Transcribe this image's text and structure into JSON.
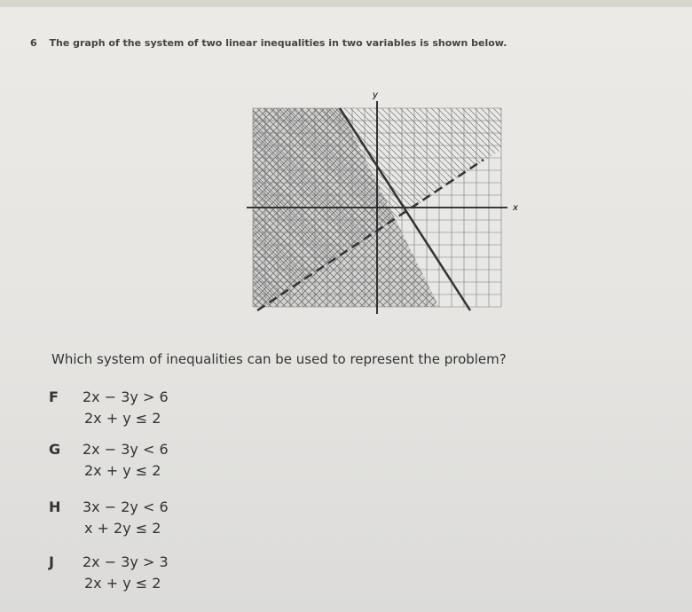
{
  "question": {
    "number": "6",
    "text": "The graph of the system of two linear inequalities in two variables is shown below."
  },
  "graph": {
    "x_label": "x",
    "y_label": "y"
  },
  "prompt": "Which system of inequalities can be used to represent the problem?",
  "options": [
    {
      "letter": "F",
      "lines": [
        "2x − 3y > 6",
        "2x + y ≤ 2"
      ]
    },
    {
      "letter": "G",
      "lines": [
        "2x − 3y < 6",
        "2x + y ≤ 2"
      ]
    },
    {
      "letter": "H",
      "lines": [
        "3x − 2y < 6",
        "x + 2y ≤ 2"
      ]
    },
    {
      "letter": "J",
      "lines": [
        "2x − 3y > 3",
        "2x + y ≤ 2"
      ]
    }
  ]
}
